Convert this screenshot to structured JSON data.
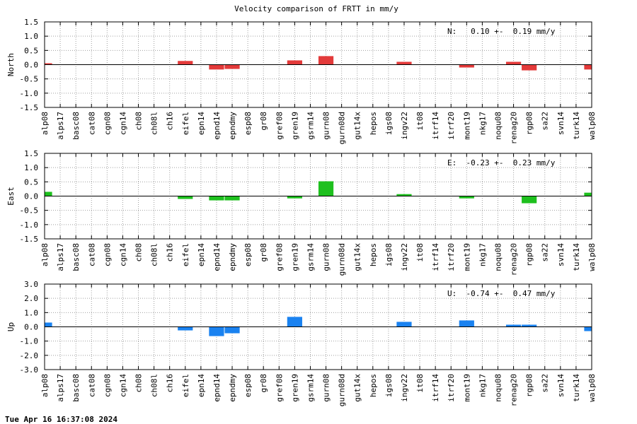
{
  "chart_data": {
    "title": "Velocity comparison of FRTT in mm/y",
    "type": "bar",
    "categories": [
      "alp08",
      "alps17",
      "basc08",
      "cat08",
      "cgn08",
      "cgn14",
      "ch08",
      "ch08l",
      "ch16",
      "eifel",
      "epn14",
      "epnd14",
      "epndmy",
      "esp08",
      "gr08",
      "gref08",
      "gren19",
      "gsrm14",
      "gurn08",
      "gurn08d",
      "gut14x",
      "hepos",
      "igs08",
      "ingv22",
      "it08",
      "itrf14",
      "itrf20",
      "mont19",
      "nkg17",
      "noqu08",
      "renag20",
      "rgp08",
      "sa22",
      "svn14",
      "turk14",
      "walp08"
    ],
    "panels": [
      {
        "ylabel": "North",
        "color": "#e33a3a",
        "ylim": [
          -1.5,
          1.5
        ],
        "yticks": [
          -1.5,
          -1.0,
          -0.5,
          0.0,
          0.5,
          1.0,
          1.5
        ],
        "ytick_labels": [
          "-1.5",
          "-1.0",
          "-0.5",
          "0.0",
          "0.5",
          "1.0",
          "1.5"
        ],
        "stat": "N:   0.10 +-  0.19 mm/y",
        "values": [
          0.05,
          0,
          0,
          0,
          0,
          0,
          0,
          0,
          0,
          0.13,
          0,
          -0.17,
          -0.15,
          0,
          0,
          0,
          0.15,
          0,
          0.3,
          0,
          0,
          0,
          0,
          0.1,
          0,
          0,
          0,
          -0.1,
          0,
          0,
          0.1,
          -0.2,
          0,
          0,
          0,
          -0.17
        ]
      },
      {
        "ylabel": "East",
        "color": "#1ec01e",
        "ylim": [
          -1.5,
          1.5
        ],
        "yticks": [
          -1.5,
          -1.0,
          -0.5,
          0.0,
          0.5,
          1.0,
          1.5
        ],
        "ytick_labels": [
          "-1.5",
          "-1.0",
          "-0.5",
          "0.0",
          "0.5",
          "1.0",
          "1.5"
        ],
        "stat": "E:  -0.23 +-  0.23 mm/y",
        "values": [
          0.15,
          0,
          0,
          0,
          0,
          0,
          0,
          0,
          0,
          -0.1,
          0,
          -0.15,
          -0.15,
          0,
          0,
          0,
          -0.08,
          0,
          0.52,
          0,
          0,
          0,
          0,
          0.07,
          0,
          0,
          0,
          -0.08,
          0,
          0,
          0,
          -0.25,
          0,
          0,
          0,
          0.12
        ]
      },
      {
        "ylabel": "Up",
        "color": "#1a82f0",
        "ylim": [
          -3.0,
          3.0
        ],
        "yticks": [
          -3.0,
          -2.0,
          -1.0,
          0.0,
          1.0,
          2.0,
          3.0
        ],
        "ytick_labels": [
          "-3.0",
          "-2.0",
          "-1.0",
          "0.0",
          "1.0",
          "2.0",
          "3.0"
        ],
        "stat": "U:  -0.74 +-  0.47 mm/y",
        "values": [
          0.3,
          0,
          0,
          0,
          0,
          0,
          0,
          0,
          0,
          -0.25,
          0,
          -0.65,
          -0.45,
          0,
          0,
          0,
          0.7,
          0,
          0,
          0,
          0,
          0,
          0,
          0.35,
          0,
          0,
          0,
          0.45,
          0,
          0,
          0.15,
          0.15,
          0,
          0,
          0,
          -0.3
        ]
      }
    ],
    "grid": true
  },
  "footer": {
    "timestamp": "Tue Apr 16 16:37:08 2024"
  }
}
